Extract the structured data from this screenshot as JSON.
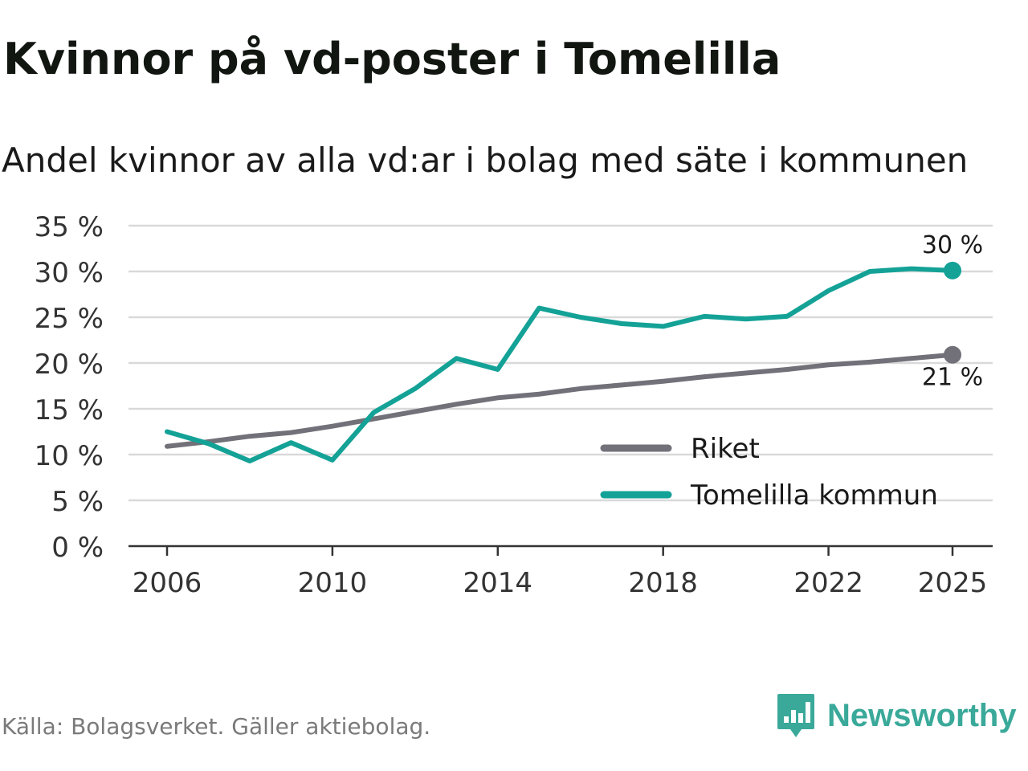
{
  "header": {
    "title": "Kvinnor på vd-poster i Tomelilla",
    "subtitle": "Andel kvinnor av alla vd:ar i bolag med säte i kommunen"
  },
  "footer": {
    "source": "Källa: Bolagsverket. Gäller aktiebolag.",
    "brand": "Newsworthy"
  },
  "colors": {
    "riket": "#727078",
    "tomelilla": "#14a297",
    "grid": "#d9d9d9",
    "axis": "#333333",
    "brand": "#3aa99a"
  },
  "chart_data": {
    "type": "line",
    "title": "Kvinnor på vd-poster i Tomelilla",
    "subtitle": "Andel kvinnor av alla vd:ar i bolag med säte i kommunen",
    "xlabel": "",
    "ylabel": "",
    "x": [
      2006,
      2007,
      2008,
      2009,
      2010,
      2011,
      2012,
      2013,
      2014,
      2015,
      2016,
      2017,
      2018,
      2019,
      2020,
      2021,
      2022,
      2023,
      2024,
      2025
    ],
    "xticks": [
      2006,
      2010,
      2014,
      2018,
      2022,
      2025
    ],
    "xlim": [
      2006,
      2025
    ],
    "ylim": [
      0,
      35
    ],
    "yticks": [
      0,
      5,
      10,
      15,
      20,
      25,
      30,
      35
    ],
    "ytick_labels": [
      "0 %",
      "5 %",
      "10 %",
      "15 %",
      "20 %",
      "25 %",
      "30 %",
      "35 %"
    ],
    "grid": true,
    "legend_position": "bottom-right",
    "series": [
      {
        "name": "Riket",
        "color": "#727078",
        "values": [
          10.9,
          11.4,
          12.0,
          12.4,
          13.1,
          13.9,
          14.7,
          15.5,
          16.2,
          16.6,
          17.2,
          17.6,
          18.0,
          18.5,
          18.9,
          19.3,
          19.8,
          20.1,
          20.5,
          20.9
        ],
        "end_label": "21 %"
      },
      {
        "name": "Tomelilla kommun",
        "color": "#14a297",
        "values": [
          12.5,
          11.2,
          9.3,
          11.3,
          9.4,
          14.6,
          17.2,
          20.5,
          19.3,
          26.0,
          25.0,
          24.3,
          24.0,
          25.1,
          24.8,
          25.1,
          27.9,
          30.0,
          30.3,
          30.1
        ],
        "end_label": "30 %"
      }
    ]
  }
}
